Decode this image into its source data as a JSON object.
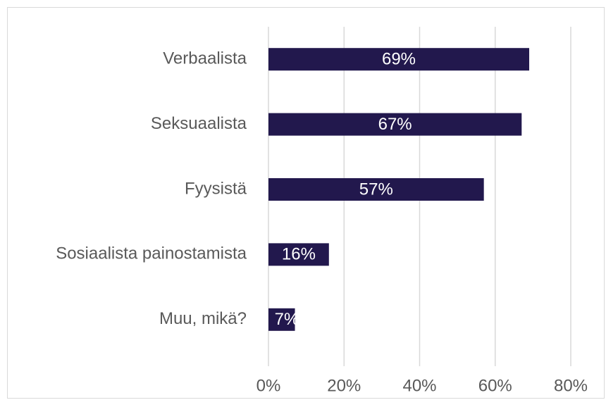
{
  "chart_data": {
    "type": "bar",
    "orientation": "horizontal",
    "categories": [
      "Verbaalista",
      "Seksuaalista",
      "Fyysistä",
      "Sosiaalista painostamista",
      "Muu, mikä?"
    ],
    "values": [
      69,
      67,
      57,
      16,
      7
    ],
    "value_labels": [
      "69%",
      "67%",
      "57%",
      "16%",
      "7%"
    ],
    "color": "#22184d",
    "xlim": [
      0,
      80
    ],
    "xticks": [
      {
        "value": 0,
        "label": "0%"
      },
      {
        "value": 20,
        "label": "20%"
      },
      {
        "value": 40,
        "label": "40%"
      },
      {
        "value": 60,
        "label": "60%"
      },
      {
        "value": 80,
        "label": "80%"
      }
    ],
    "grid": true
  }
}
